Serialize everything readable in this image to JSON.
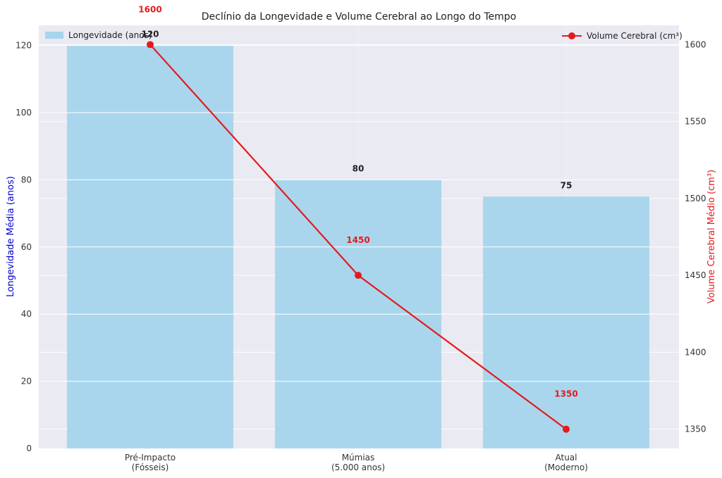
{
  "chart_data": {
    "type": "bar",
    "title": "Declínio da Longevidade e Volume Cerebral ao Longo do Tempo",
    "categories": [
      "Pré-Impacto\n(Fósseis)",
      "Múmias\n(5.000 anos)",
      "Atual\n(Moderno)"
    ],
    "series": [
      {
        "name": "Longevidade (anos)",
        "type": "bar",
        "axis": "left",
        "values": [
          120,
          80,
          75
        ],
        "color": "#a6d5ec"
      },
      {
        "name": "Volume Cerebral (cm³)",
        "type": "line",
        "axis": "right",
        "values": [
          1600,
          1450,
          1350
        ],
        "color": "#e41a1c"
      }
    ],
    "ylabel_left": "Longevidade Média (anos)",
    "ylabel_right": "Volume Cerebral Médio (cm³)",
    "ylabel_left_color": "#0000cc",
    "ylabel_right_color": "#e41a1c",
    "ylim_left": [
      0,
      126
    ],
    "yticks_left": [
      0,
      20,
      40,
      60,
      80,
      100,
      120
    ],
    "ylim_right": [
      1337.5,
      1612.5
    ],
    "yticks_right": [
      1350,
      1400,
      1450,
      1500,
      1550,
      1600
    ],
    "grid": true,
    "background": "#eaeaf2",
    "legend_bar_position": "top-left",
    "legend_line_position": "top-right"
  }
}
